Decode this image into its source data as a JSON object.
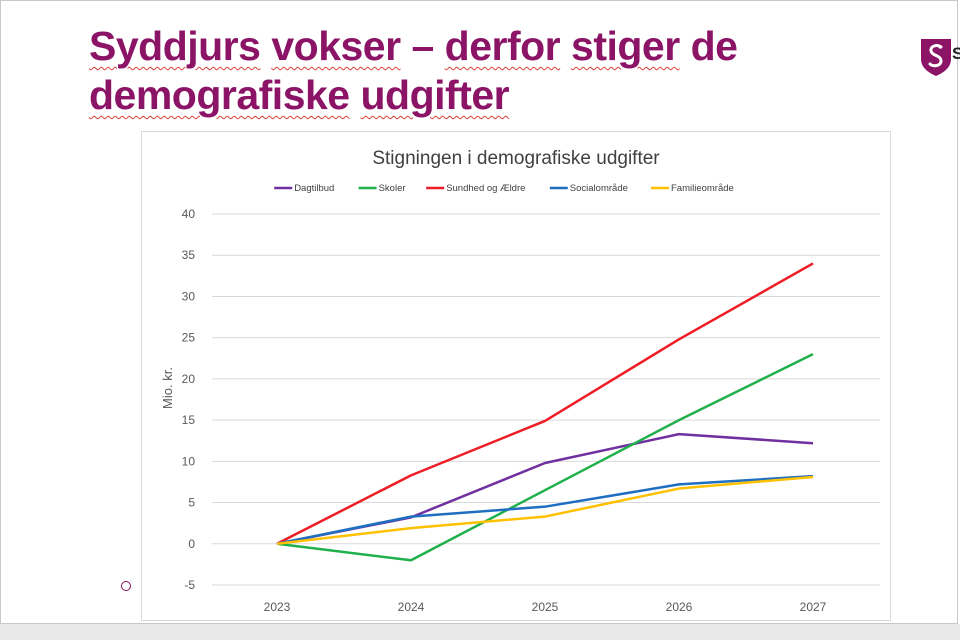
{
  "slide": {
    "title_parts": [
      "Syddjurs",
      " ",
      "vokser",
      " – ",
      "derfor",
      " ",
      "stiger",
      " de ",
      "demografiske",
      " ",
      "udgifter"
    ],
    "logo_icon": "syddjurs-logo-icon",
    "logo_letter": "S",
    "accent_color": "#8b1467"
  },
  "chart_data": {
    "type": "line",
    "title": "Stigningen i demografiske udgifter",
    "ylabel": "Mio. kr.",
    "xlabel": "",
    "x": [
      "2023",
      "2024",
      "2025",
      "2026",
      "2027"
    ],
    "ylim": [
      -5,
      40
    ],
    "yticks": [
      -5,
      0,
      5,
      10,
      15,
      20,
      25,
      30,
      35,
      40
    ],
    "grid": true,
    "legend_position": "top",
    "series": [
      {
        "name": "Dagtilbud",
        "color": "#7030a0",
        "values": [
          0,
          3.2,
          9.8,
          13.3,
          12.2
        ]
      },
      {
        "name": "Skoler",
        "color": "#1fb04b",
        "values": [
          0,
          -2.0,
          6.5,
          15.0,
          23.0
        ]
      },
      {
        "name": "Sundhed og Ældre",
        "color": "#ee1c25",
        "values": [
          0,
          8.3,
          14.9,
          24.8,
          34.0
        ]
      },
      {
        "name": "Socialområde",
        "color": "#1f6fc0",
        "values": [
          0,
          3.3,
          4.5,
          7.2,
          8.2
        ]
      },
      {
        "name": "Familieområde",
        "color": "#ffc000",
        "values": [
          0,
          1.9,
          3.3,
          6.7,
          8.1
        ]
      }
    ]
  }
}
